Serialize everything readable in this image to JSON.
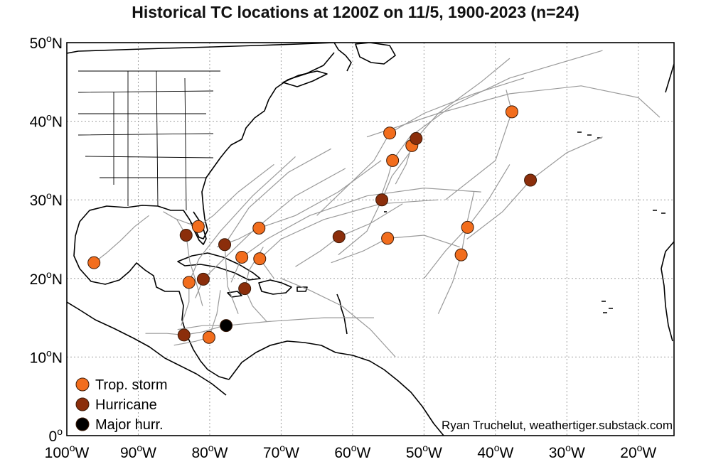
{
  "title": "Historical TC locations at 1200Z on 11/5, 1900-2023 (n=24)",
  "credit": "Ryan Truchelut, weathertiger.substack.com",
  "colors": {
    "tropical_storm": "#f26d1d",
    "hurricane": "#8b2e0b",
    "major_hurricane": "#000000",
    "track": "#9a9a9a",
    "land": "#000000",
    "grid": "#a0a0a0"
  },
  "axes": {
    "lon_ticks": [
      {
        "value": -100,
        "label": "100",
        "suffix": "W"
      },
      {
        "value": -90,
        "label": "90",
        "suffix": "W"
      },
      {
        "value": -80,
        "label": "80",
        "suffix": "W"
      },
      {
        "value": -70,
        "label": "70",
        "suffix": "W"
      },
      {
        "value": -60,
        "label": "60",
        "suffix": "W"
      },
      {
        "value": -50,
        "label": "50",
        "suffix": "W"
      },
      {
        "value": -40,
        "label": "40",
        "suffix": "W"
      },
      {
        "value": -30,
        "label": "30",
        "suffix": "W"
      },
      {
        "value": -20,
        "label": "20",
        "suffix": "W"
      }
    ],
    "lat_ticks": [
      {
        "value": 0,
        "label": "0",
        "suffix": ""
      },
      {
        "value": 10,
        "label": "10",
        "suffix": "N"
      },
      {
        "value": 20,
        "label": "20",
        "suffix": "N"
      },
      {
        "value": 30,
        "label": "30",
        "suffix": "N"
      },
      {
        "value": 40,
        "label": "40",
        "suffix": "N"
      },
      {
        "value": 50,
        "label": "50",
        "suffix": "N"
      }
    ],
    "degree_symbol": "o",
    "lon_range": [
      -100,
      -15
    ],
    "lat_range": [
      0,
      50
    ],
    "grid": true
  },
  "legend": {
    "placement": "bottom-left",
    "items": [
      {
        "label": "Trop. storm",
        "category": "tropical_storm"
      },
      {
        "label": "Hurricane",
        "category": "hurricane"
      },
      {
        "label": "Major hurr.",
        "category": "major_hurricane"
      }
    ]
  },
  "chart_data": {
    "type": "scatter",
    "x_name": "longitude",
    "y_name": "latitude",
    "points": [
      {
        "lon": -96.2,
        "lat": 22.0,
        "category": "tropical_storm"
      },
      {
        "lon": -81.6,
        "lat": 26.6,
        "category": "tropical_storm"
      },
      {
        "lon": -82.9,
        "lat": 19.5,
        "category": "tropical_storm"
      },
      {
        "lon": -80.1,
        "lat": 12.5,
        "category": "tropical_storm"
      },
      {
        "lon": -75.5,
        "lat": 22.7,
        "category": "tropical_storm"
      },
      {
        "lon": -73.0,
        "lat": 22.5,
        "category": "tropical_storm"
      },
      {
        "lon": -73.1,
        "lat": 26.4,
        "category": "tropical_storm"
      },
      {
        "lon": -54.8,
        "lat": 38.5,
        "category": "tropical_storm"
      },
      {
        "lon": -54.4,
        "lat": 35.0,
        "category": "tropical_storm"
      },
      {
        "lon": -51.7,
        "lat": 36.9,
        "category": "tropical_storm"
      },
      {
        "lon": -55.1,
        "lat": 25.1,
        "category": "tropical_storm"
      },
      {
        "lon": -44.8,
        "lat": 23.0,
        "category": "tropical_storm"
      },
      {
        "lon": -43.9,
        "lat": 26.5,
        "category": "tropical_storm"
      },
      {
        "lon": -37.7,
        "lat": 41.2,
        "category": "tropical_storm"
      },
      {
        "lon": -83.3,
        "lat": 25.5,
        "category": "hurricane"
      },
      {
        "lon": -77.9,
        "lat": 24.3,
        "category": "hurricane"
      },
      {
        "lon": -80.9,
        "lat": 19.9,
        "category": "hurricane"
      },
      {
        "lon": -75.1,
        "lat": 18.7,
        "category": "hurricane"
      },
      {
        "lon": -83.6,
        "lat": 12.8,
        "category": "hurricane"
      },
      {
        "lon": -61.9,
        "lat": 25.3,
        "category": "hurricane"
      },
      {
        "lon": -55.9,
        "lat": 30.0,
        "category": "hurricane"
      },
      {
        "lon": -51.1,
        "lat": 37.8,
        "category": "hurricane"
      },
      {
        "lon": -35.1,
        "lat": 32.5,
        "category": "hurricane"
      },
      {
        "lon": -77.7,
        "lat": 14.0,
        "category": "major_hurricane"
      }
    ],
    "tracks": [
      [
        [
          -96.2,
          22.0
        ],
        [
          -94.5,
          23.2
        ],
        [
          -92.5,
          24.8
        ],
        [
          -90.5,
          26.6
        ],
        [
          -88.5,
          28.0
        ]
      ],
      [
        [
          -81.0,
          16.5
        ],
        [
          -81.9,
          19.5
        ],
        [
          -82.8,
          22.2
        ],
        [
          -83.3,
          25.5
        ],
        [
          -84.6,
          27.5
        ]
      ],
      [
        [
          -86.5,
          28.5
        ],
        [
          -84.8,
          27.6
        ],
        [
          -83.0,
          27.0
        ],
        [
          -81.6,
          26.6
        ],
        [
          -79.5,
          28.0
        ],
        [
          -76.0,
          31.0
        ],
        [
          -71.0,
          34.5
        ]
      ],
      [
        [
          -84.0,
          14.0
        ],
        [
          -82.9,
          17.0
        ],
        [
          -82.9,
          19.5
        ],
        [
          -81.5,
          22.5
        ],
        [
          -78.5,
          26.0
        ],
        [
          -74.0,
          30.5
        ],
        [
          -68.0,
          35.5
        ]
      ],
      [
        [
          -76.0,
          15.5
        ],
        [
          -77.5,
          19.0
        ],
        [
          -77.9,
          24.3
        ],
        [
          -74.5,
          29.0
        ],
        [
          -69.0,
          33.5
        ],
        [
          -63.0,
          36.5
        ]
      ],
      [
        [
          -82.0,
          17.5
        ],
        [
          -80.9,
          19.9
        ],
        [
          -78.0,
          22.5
        ],
        [
          -74.0,
          26.0
        ],
        [
          -68.0,
          30.5
        ],
        [
          -61.0,
          34.0
        ]
      ],
      [
        [
          -72.0,
          14.5
        ],
        [
          -74.0,
          16.5
        ],
        [
          -75.1,
          18.7
        ],
        [
          -74.5,
          21.0
        ],
        [
          -72.5,
          24.0
        ]
      ],
      [
        [
          -77.0,
          19.5
        ],
        [
          -75.5,
          22.7
        ],
        [
          -72.0,
          25.0
        ],
        [
          -66.0,
          28.0
        ],
        [
          -58.0,
          30.5
        ],
        [
          -50.0,
          31.5
        ],
        [
          -42.0,
          31.0
        ]
      ],
      [
        [
          -71.0,
          20.0
        ],
        [
          -73.0,
          22.5
        ],
        [
          -70.0,
          25.0
        ],
        [
          -64.0,
          27.5
        ],
        [
          -56.0,
          29.5
        ],
        [
          -48.0,
          30.0
        ]
      ],
      [
        [
          -79.0,
          24.0
        ],
        [
          -76.0,
          25.0
        ],
        [
          -73.1,
          26.4
        ],
        [
          -68.0,
          28.0
        ],
        [
          -62.0,
          31.0
        ],
        [
          -56.0,
          35.0
        ]
      ],
      [
        [
          -89.0,
          13.0
        ],
        [
          -86.0,
          13.0
        ],
        [
          -83.6,
          12.8
        ],
        [
          -81.0,
          13.2
        ],
        [
          -78.0,
          14.0
        ]
      ],
      [
        [
          -85.0,
          11.5
        ],
        [
          -82.0,
          12.0
        ],
        [
          -80.1,
          12.5
        ],
        [
          -79.0,
          15.5
        ],
        [
          -78.5,
          18.5
        ]
      ],
      [
        [
          -84.5,
          13.5
        ],
        [
          -81.0,
          14.0
        ],
        [
          -77.7,
          14.0
        ],
        [
          -72.0,
          14.5
        ],
        [
          -64.0,
          15.0
        ],
        [
          -57.0,
          15.0
        ]
      ],
      [
        [
          -68.0,
          21.5
        ],
        [
          -64.5,
          23.5
        ],
        [
          -61.9,
          25.3
        ],
        [
          -57.5,
          27.0
        ],
        [
          -53.0,
          29.5
        ]
      ],
      [
        [
          -62.0,
          23.0
        ],
        [
          -58.0,
          26.0
        ],
        [
          -55.9,
          30.0
        ],
        [
          -54.5,
          33.0
        ],
        [
          -52.0,
          36.0
        ]
      ],
      [
        [
          -65.0,
          28.0
        ],
        [
          -61.0,
          31.5
        ],
        [
          -57.0,
          35.0
        ],
        [
          -54.8,
          38.5
        ],
        [
          -50.0,
          41.0
        ],
        [
          -43.0,
          43.5
        ],
        [
          -36.0,
          45.5
        ]
      ],
      [
        [
          -56.0,
          30.5
        ],
        [
          -55.0,
          33.0
        ],
        [
          -54.4,
          35.0
        ],
        [
          -52.0,
          38.0
        ],
        [
          -46.0,
          42.0
        ],
        [
          -38.0,
          45.5
        ],
        [
          -25.0,
          49.0
        ]
      ],
      [
        [
          -54.0,
          32.0
        ],
        [
          -52.5,
          34.5
        ],
        [
          -51.7,
          36.9
        ],
        [
          -51.1,
          37.8
        ],
        [
          -48.0,
          41.0
        ],
        [
          -42.0,
          45.0
        ],
        [
          -38.0,
          48.0
        ]
      ],
      [
        [
          -63.0,
          22.0
        ],
        [
          -58.5,
          23.5
        ],
        [
          -55.1,
          25.1
        ],
        [
          -50.0,
          25.5
        ],
        [
          -45.0,
          24.0
        ]
      ],
      [
        [
          -48.0,
          15.5
        ],
        [
          -46.0,
          19.5
        ],
        [
          -44.8,
          23.0
        ],
        [
          -44.0,
          27.0
        ],
        [
          -43.0,
          31.0
        ]
      ],
      [
        [
          -50.0,
          20.0
        ],
        [
          -47.0,
          23.5
        ],
        [
          -43.9,
          26.5
        ],
        [
          -41.0,
          30.0
        ],
        [
          -38.0,
          34.5
        ]
      ],
      [
        [
          -47.0,
          30.0
        ],
        [
          -40.0,
          35.0
        ],
        [
          -37.7,
          41.2
        ],
        [
          -38.5,
          44.0
        ]
      ],
      [
        [
          -44.0,
          25.0
        ],
        [
          -39.0,
          28.5
        ],
        [
          -35.1,
          32.5
        ],
        [
          -30.0,
          36.0
        ],
        [
          -25.0,
          38.0
        ]
      ],
      [
        [
          -58.0,
          38.0
        ],
        [
          -48.0,
          41.0
        ],
        [
          -38.0,
          43.5
        ],
        [
          -28.0,
          44.5
        ],
        [
          -20.0,
          43.0
        ],
        [
          -17.0,
          40.5
        ]
      ],
      [
        [
          -70.0,
          20.0
        ],
        [
          -66.0,
          18.5
        ],
        [
          -61.5,
          16.5
        ],
        [
          -57.5,
          13.5
        ],
        [
          -54.0,
          10.0
        ]
      ]
    ],
    "title": "Historical TC locations at 1200Z on 11/5, 1900-2023 (n=24)"
  }
}
